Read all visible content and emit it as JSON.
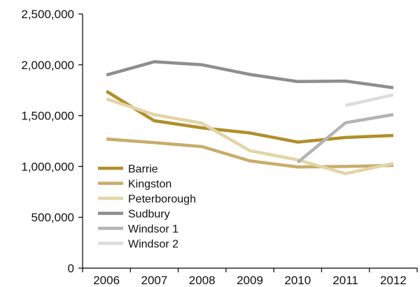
{
  "chart_data": {
    "type": "line",
    "x": [
      "2006",
      "2007",
      "2008",
      "2009",
      "2010",
      "2011",
      "2012"
    ],
    "y_ticks": [
      "0",
      "500,000",
      "1,000,000",
      "1,500,000",
      "2,000,000",
      "2,500,000"
    ],
    "ylim": [
      0,
      2500000
    ],
    "grid": false,
    "legend_position": "bottom-left",
    "series": [
      {
        "name": "Barrie",
        "color": "#B08F2A",
        "values": [
          1740000,
          1450000,
          1380000,
          1330000,
          1240000,
          1285000,
          1305000
        ]
      },
      {
        "name": "Kingston",
        "color": "#C8AC6A",
        "values": [
          1270000,
          1235000,
          1195000,
          1055000,
          995000,
          1000000,
          1010000
        ]
      },
      {
        "name": "Peterborough",
        "color": "#E3D4A6",
        "values": [
          1665000,
          1510000,
          1425000,
          1155000,
          1065000,
          930000,
          1030000
        ]
      },
      {
        "name": "Sudbury",
        "color": "#8E8E8E",
        "values": [
          1900000,
          2030000,
          2000000,
          1905000,
          1835000,
          1840000,
          1775000
        ]
      },
      {
        "name": "Windsor 1",
        "color": "#B4B4B4",
        "values": [
          null,
          null,
          null,
          null,
          1040000,
          1430000,
          1510000
        ]
      },
      {
        "name": "Windsor 2",
        "color": "#DCDCDC",
        "values": [
          null,
          null,
          null,
          null,
          null,
          1600000,
          1705000
        ]
      }
    ]
  }
}
